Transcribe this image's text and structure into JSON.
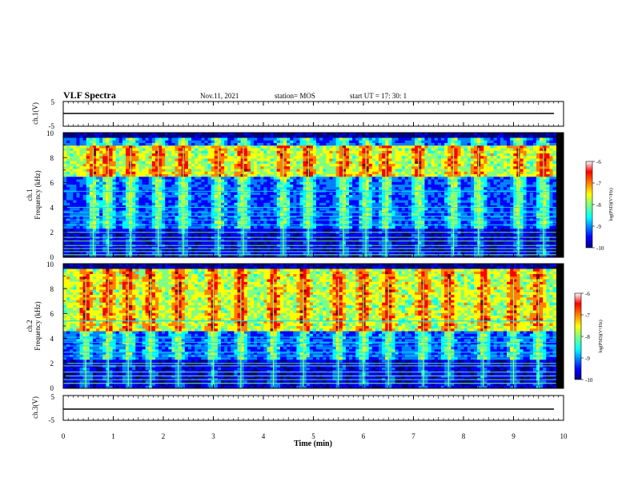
{
  "header": {
    "title": "VLF Spectra",
    "date": "Nov.11, 2021",
    "station": "station= MOS",
    "start": "start  UT =   17: 30: 1"
  },
  "chart_data": [
    {
      "type": "line",
      "panel": "ch1-waveform",
      "ylabel": "ch.1(V)",
      "ylim": [
        -5,
        5
      ],
      "yticks": [
        "5",
        "-5"
      ],
      "series": [
        {
          "values": [
            0,
            0
          ]
        }
      ]
    },
    {
      "type": "heatmap",
      "panel": "ch1-spectrogram",
      "ylabel": "ch.1\nFrequency (kHz)",
      "ylim": [
        0,
        10
      ],
      "yticks": [
        "0",
        "2",
        "4",
        "6",
        "8",
        "10"
      ],
      "x_unit": "min",
      "xlim": [
        0,
        10
      ],
      "data_end_min": 9.85,
      "colorbar": {
        "label": "log(PSD)(V²/Hz)",
        "range": [
          -10,
          -6
        ],
        "ticks": [
          "-6",
          "-7",
          "-8",
          "-9",
          "-10"
        ]
      },
      "noise_lines_khz": [
        0.2,
        0.45,
        0.7,
        0.95,
        1.3,
        1.6,
        2.0,
        2.6,
        3.0,
        3.3,
        3.6,
        4.0,
        5.3
      ],
      "bursts_min": [
        0.6,
        0.9,
        1.35,
        1.9,
        2.4,
        3.1,
        3.6,
        4.4,
        4.9,
        5.6,
        6.05,
        6.45,
        7.1,
        7.8,
        8.3,
        9.1,
        9.6
      ],
      "upper_band_khz": [
        6.5,
        9.0
      ]
    },
    {
      "type": "heatmap",
      "panel": "ch2-spectrogram",
      "ylabel": "ch.2\nFrequency (kHz)",
      "ylim": [
        0,
        10
      ],
      "yticks": [
        "0",
        "2",
        "4",
        "6",
        "8",
        "10"
      ],
      "x_unit": "min",
      "xlim": [
        0,
        10
      ],
      "data_end_min": 9.85,
      "colorbar": {
        "label": "log(PSD)(V²/Hz)",
        "range": [
          -10,
          -6
        ],
        "ticks": [
          "-6",
          "-7",
          "-8",
          "-9",
          "-10"
        ]
      },
      "noise_lines_khz": [
        0.4,
        0.7,
        1.0,
        1.3,
        1.8,
        2.0,
        2.6,
        2.9,
        3.4,
        3.7,
        4.1,
        5.4
      ],
      "bursts_min": [
        0.45,
        0.9,
        1.3,
        1.75,
        2.3,
        3.0,
        3.55,
        4.2,
        4.8,
        5.5,
        6.0,
        6.5,
        7.2,
        7.7,
        8.4,
        9.0,
        9.5
      ],
      "upper_band_khz": [
        4.5,
        9.5
      ]
    },
    {
      "type": "line",
      "panel": "ch3-waveform",
      "ylabel": "ch.3(V)",
      "ylim": [
        -5,
        5
      ],
      "yticks": [
        "5",
        "-5"
      ],
      "xlabel": "Time  (min)",
      "xlim": [
        0,
        10
      ],
      "xticks": [
        "0",
        "1",
        "2",
        "3",
        "4",
        "5",
        "6",
        "7",
        "8",
        "9",
        "10"
      ],
      "series": [
        {
          "values": [
            0,
            0
          ]
        }
      ]
    }
  ],
  "colors": {
    "jet": [
      "#000080",
      "#0000ff",
      "#0080ff",
      "#00ffff",
      "#80ff80",
      "#ffff00",
      "#ff8000",
      "#ff0000",
      "#800000"
    ],
    "background_noise": "#000050"
  }
}
